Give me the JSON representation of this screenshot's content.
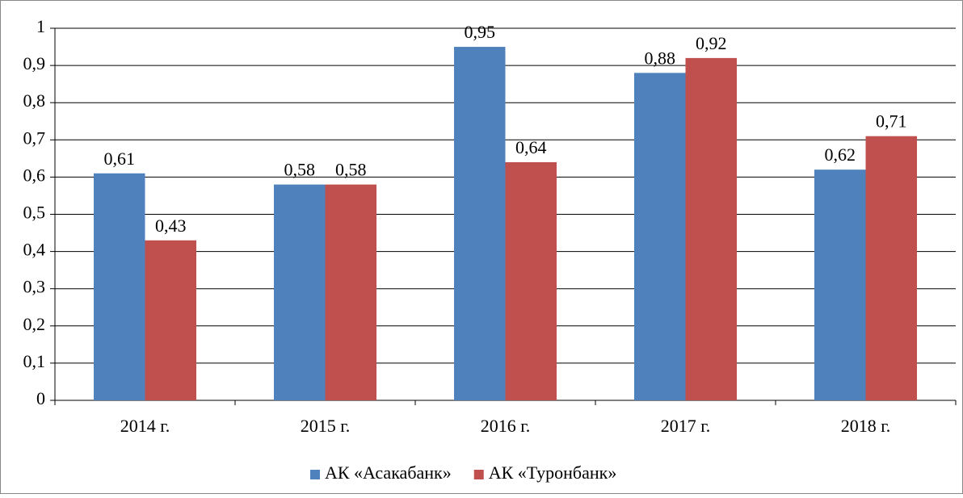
{
  "chart_data": {
    "type": "bar",
    "categories": [
      "2014 г.",
      "2015 г.",
      "2016 г.",
      "2017 г.",
      "2018 г."
    ],
    "series": [
      {
        "name": "АК «Асакабанк»",
        "color": "#4f81bd",
        "values": [
          0.61,
          0.58,
          0.95,
          0.88,
          0.62
        ],
        "value_labels": [
          "0,61",
          "0,58",
          "0,95",
          "0,88",
          "0,62"
        ]
      },
      {
        "name": "АК «Туронбанк»",
        "color": "#c0504d",
        "values": [
          0.43,
          0.58,
          0.64,
          0.92,
          0.71
        ],
        "value_labels": [
          "0,43",
          "0,58",
          "0,64",
          "0,92",
          "0,71"
        ]
      }
    ],
    "ylim": [
      0,
      1
    ],
    "yticks": [
      0,
      {
        "value": 0.1,
        "label": "0,1"
      },
      {
        "value": 0.2,
        "label": "0,2"
      },
      {
        "value": 0.3,
        "label": "0,3"
      },
      {
        "value": 0.4,
        "label": "0,4"
      },
      {
        "value": 0.5,
        "label": "0,5"
      },
      {
        "value": 0.6,
        "label": "0,6"
      },
      {
        "value": 0.7,
        "label": "0,7"
      },
      {
        "value": 0.8,
        "label": "0,8"
      },
      {
        "value": 0.9,
        "label": "0,9"
      },
      1
    ],
    "grid": true,
    "legend": "bottom"
  }
}
